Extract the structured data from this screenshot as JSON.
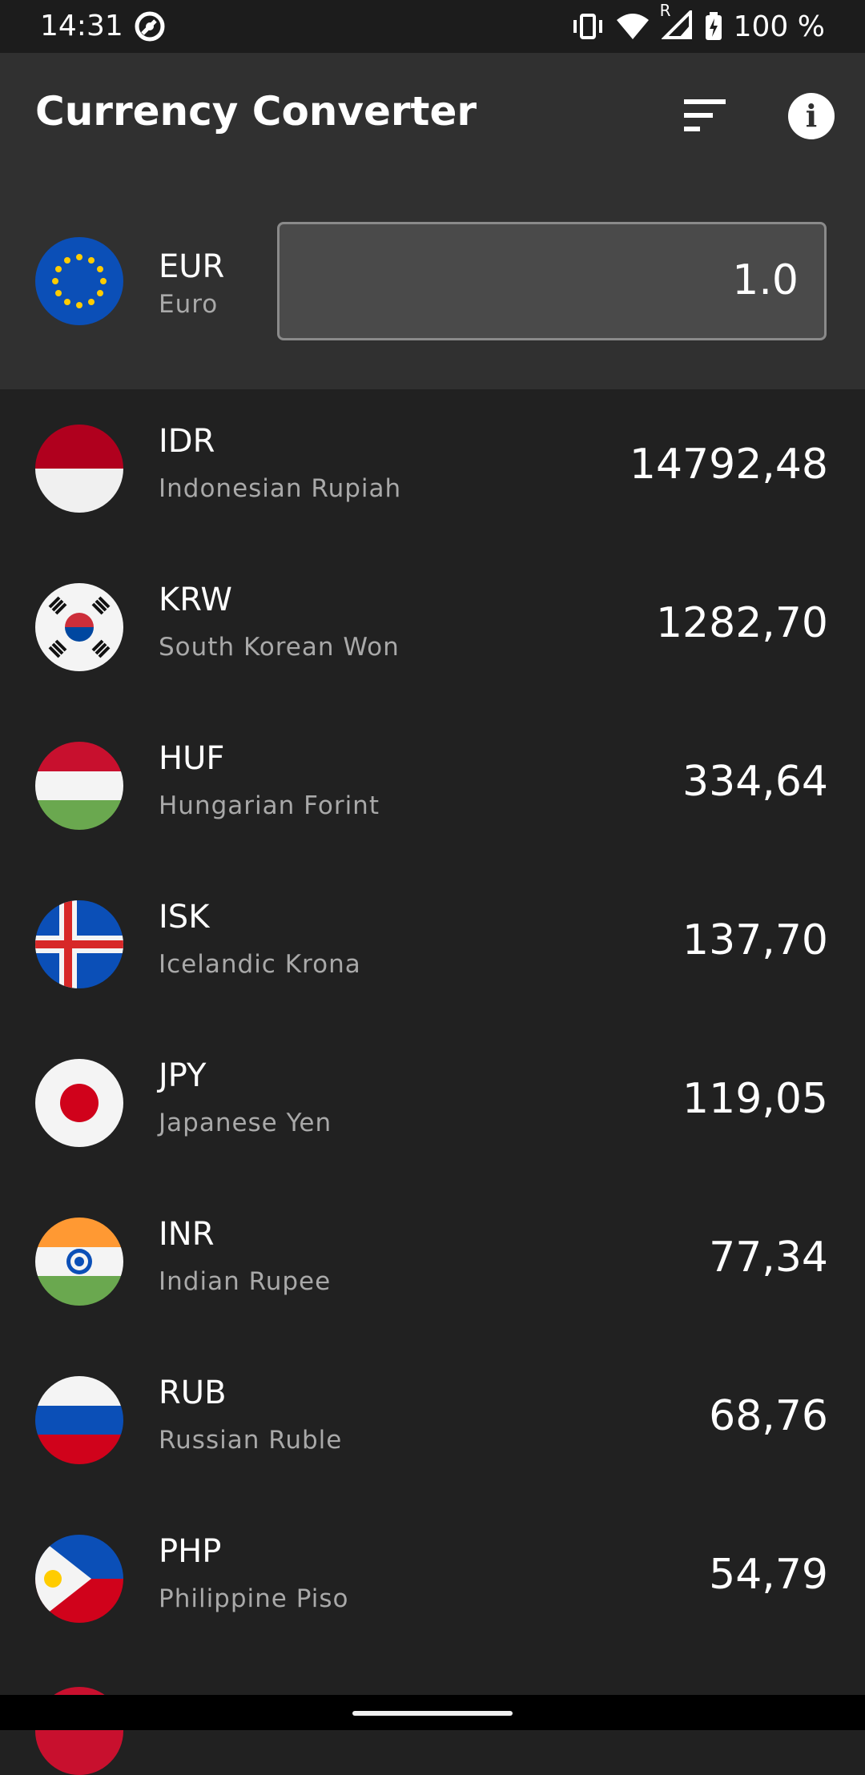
{
  "status_bar": {
    "time": "14:31",
    "battery": "100 %",
    "signal_badge": "R"
  },
  "app_bar": {
    "title": "Currency Converter",
    "filter_icon": "sort-icon",
    "info_icon": "info-icon"
  },
  "base": {
    "code": "EUR",
    "name": "Euro",
    "amount": "1.0",
    "flag": "eu-flag-icon"
  },
  "rates": [
    {
      "code": "IDR",
      "name": "Indonesian Rupiah",
      "value": "14792,48",
      "flag": "indonesia-flag-icon"
    },
    {
      "code": "KRW",
      "name": "South Korean Won",
      "value": "1282,70",
      "flag": "south-korea-flag-icon"
    },
    {
      "code": "HUF",
      "name": "Hungarian Forint",
      "value": "334,64",
      "flag": "hungary-flag-icon"
    },
    {
      "code": "ISK",
      "name": "Icelandic Krona",
      "value": "137,70",
      "flag": "iceland-flag-icon"
    },
    {
      "code": "JPY",
      "name": "Japanese Yen",
      "value": "119,05",
      "flag": "japan-flag-icon"
    },
    {
      "code": "INR",
      "name": "Indian Rupee",
      "value": "77,34",
      "flag": "india-flag-icon"
    },
    {
      "code": "RUB",
      "name": "Russian Ruble",
      "value": "68,76",
      "flag": "russia-flag-icon"
    },
    {
      "code": "PHP",
      "name": "Philippine Piso",
      "value": "54,79",
      "flag": "philippines-flag-icon"
    }
  ],
  "colors": {
    "background": "#212121",
    "app_bar": "#303030",
    "input": "#4a4a4a",
    "secondary_text": "#a9a9a9"
  }
}
